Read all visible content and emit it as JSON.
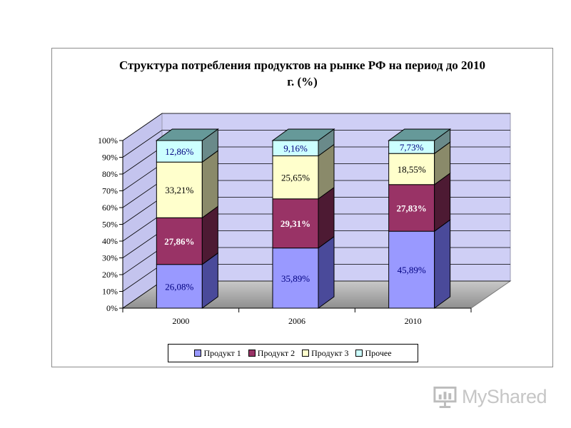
{
  "chart_data": {
    "type": "bar",
    "stacked": true,
    "three_d": true,
    "title_lines": [
      "Структура потребления  продуктов на рынке РФ на период до 2010",
      "г. (%)"
    ],
    "categories": [
      "2000",
      "2006",
      "2010"
    ],
    "series": [
      {
        "name": "Продукт 1",
        "values": [
          26.08,
          35.89,
          45.89
        ],
        "labels": [
          "26,08%",
          "35,89%",
          "45,89%"
        ],
        "color": "#9999ff",
        "side": "#4a4a9a",
        "label_color": "#000080",
        "label_bold": false
      },
      {
        "name": "Продукт 2",
        "values": [
          27.86,
          29.31,
          27.83
        ],
        "labels": [
          "27,86%",
          "29,31%",
          "27,83%"
        ],
        "color": "#993366",
        "side": "#4d1a33",
        "label_color": "#ffffff",
        "label_bold": true
      },
      {
        "name": "Продукт 3",
        "values": [
          33.21,
          25.65,
          18.55
        ],
        "labels": [
          "33,21%",
          "25,65%",
          "18,55%"
        ],
        "color": "#ffffcc",
        "side": "#8a8a6a",
        "label_color": "#000000",
        "label_bold": false
      },
      {
        "name": "Прочее",
        "values": [
          12.86,
          9.16,
          7.73
        ],
        "labels": [
          "12,86%",
          "9,16%",
          "7,73%"
        ],
        "color": "#ccffff",
        "side": "#6a8a8a",
        "label_color": "#000080",
        "label_bold": false
      }
    ],
    "top_color": "#669999",
    "ylim": [
      0,
      100
    ],
    "yticks": [
      0,
      10,
      20,
      30,
      40,
      50,
      60,
      70,
      80,
      90,
      100
    ],
    "ytick_labels": [
      "0%",
      "10%",
      "20%",
      "30%",
      "40%",
      "50%",
      "60%",
      "70%",
      "80%",
      "90%",
      "100%"
    ],
    "grid": true,
    "wall_color": "#cfcff5",
    "floor_color": "#8f8f8f",
    "legend_position": "bottom"
  },
  "watermark": {
    "text": "MyShared"
  }
}
